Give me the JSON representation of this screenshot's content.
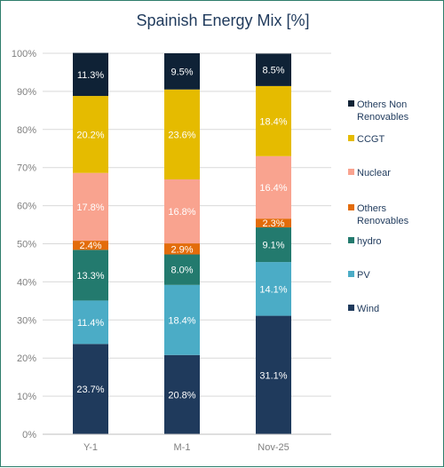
{
  "chart_data": {
    "type": "bar",
    "stacked": true,
    "title": "Spainish Energy Mix [%]",
    "categories": [
      "Y-1",
      "M-1",
      "Nov-25"
    ],
    "ylim": [
      0,
      100
    ],
    "ytick_labels": [
      "0%",
      "10%",
      "20%",
      "30%",
      "40%",
      "50%",
      "60%",
      "70%",
      "80%",
      "90%",
      "100%"
    ],
    "grid": true,
    "legend_position": "right",
    "series": [
      {
        "name": "Wind",
        "color": "#1f3a5c",
        "label_color": "#ffffff",
        "values": [
          23.7,
          20.8,
          31.1
        ],
        "labels": [
          "23.7%",
          "20.8%",
          "31.1%"
        ]
      },
      {
        "name": "PV",
        "color": "#4bacc6",
        "label_color": "#ffffff",
        "values": [
          11.4,
          18.4,
          14.1
        ],
        "labels": [
          "11.4%",
          "18.4%",
          "14.1%"
        ]
      },
      {
        "name": "hydro",
        "color": "#237a6e",
        "label_color": "#ffffff",
        "values": [
          13.3,
          8.0,
          9.1
        ],
        "labels": [
          "13.3%",
          "8.0%",
          "9.1%"
        ]
      },
      {
        "name": "Others Renovables",
        "color": "#e36c0a",
        "label_color": "#ffffff",
        "values": [
          2.4,
          2.9,
          2.3
        ],
        "labels": [
          "2.4%",
          "2.9%",
          "2.3%"
        ]
      },
      {
        "name": "Nuclear",
        "color": "#f9a38f",
        "label_color": "#ffffff",
        "values": [
          17.8,
          16.8,
          16.4
        ],
        "labels": [
          "17.8%",
          "16.8%",
          "16.4%"
        ]
      },
      {
        "name": "CCGT",
        "color": "#e5bb00",
        "label_color": "#ffffff",
        "values": [
          20.2,
          23.6,
          18.4
        ],
        "labels": [
          "20.2%",
          "23.6%",
          "18.4%"
        ]
      },
      {
        "name": "Others Non Renovables",
        "color": "#0f2236",
        "label_color": "#ffffff",
        "values": [
          11.3,
          9.5,
          8.5
        ],
        "labels": [
          "11.3%",
          "9.5%",
          "8.5%"
        ]
      }
    ],
    "legend_lines": [
      {
        "series": "Others Non Renovables",
        "lines": [
          "Others Non",
          "Renovables"
        ]
      },
      {
        "series": "CCGT",
        "lines": [
          "CCGT"
        ]
      },
      {
        "series": "Nuclear",
        "lines": [
          "Nuclear"
        ]
      },
      {
        "series": "Others Renovables",
        "lines": [
          "Others",
          "Renovables"
        ]
      },
      {
        "series": "hydro",
        "lines": [
          "hydro"
        ]
      },
      {
        "series": "PV",
        "lines": [
          "PV"
        ]
      },
      {
        "series": "Wind",
        "lines": [
          "Wind"
        ]
      }
    ]
  }
}
